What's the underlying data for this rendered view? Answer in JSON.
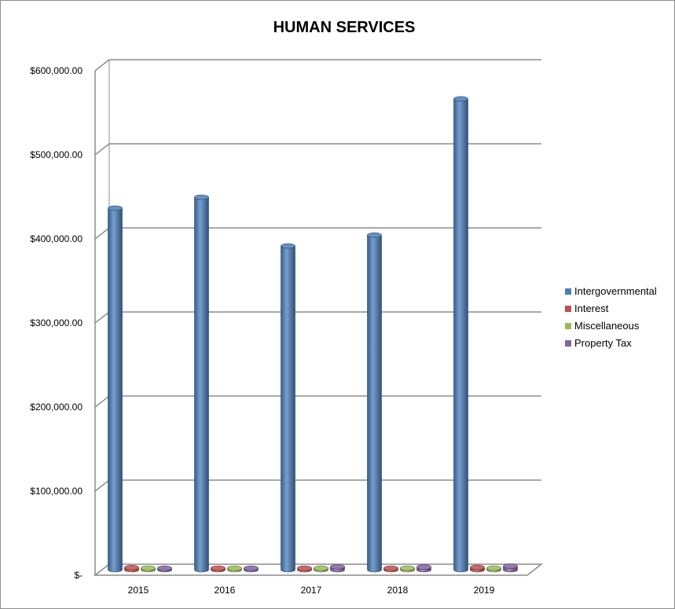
{
  "chart_data": {
    "type": "bar",
    "title": "HUMAN SERVICES",
    "categories": [
      "2015",
      "2016",
      "2017",
      "2018",
      "2019"
    ],
    "series": [
      {
        "name": "Intergovernmental",
        "color": "#4a7ebb",
        "values": [
          430000,
          443000,
          385000,
          398000,
          560000
        ]
      },
      {
        "name": "Interest",
        "color": "#c0504d",
        "values": [
          2500,
          1200,
          1200,
          1500,
          2800
        ]
      },
      {
        "name": "Miscellaneous",
        "color": "#9bbb59",
        "values": [
          500,
          500,
          500,
          500,
          500
        ]
      },
      {
        "name": "Property Tax",
        "color": "#8064a2",
        "values": [
          1200,
          1500,
          3500,
          3200,
          4200
        ]
      }
    ],
    "ylim": [
      0,
      600000
    ],
    "y_ticks": [
      0,
      100000,
      200000,
      300000,
      400000,
      500000,
      600000
    ],
    "y_tick_labels": [
      "$-",
      "$100,000.00",
      "$200,000.00",
      "$300,000.00",
      "$400,000.00",
      "$500,000.00",
      "$600,000.00"
    ],
    "grid": true,
    "legend_position": "right",
    "style": "3d-cylinder"
  }
}
